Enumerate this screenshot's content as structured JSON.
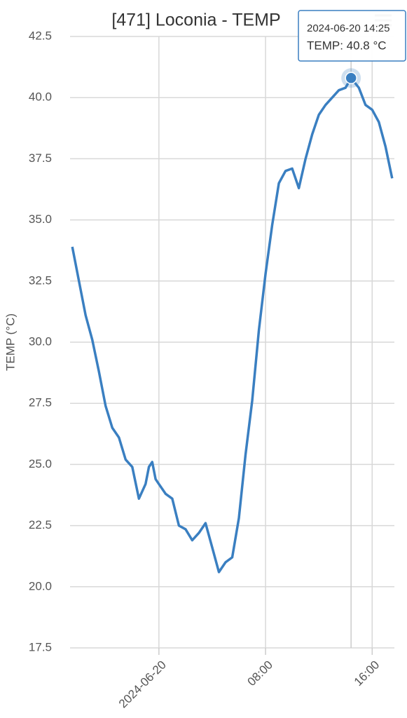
{
  "chart_data": {
    "type": "line",
    "title": "[471] Loconia - TEMP",
    "y_label": "TEMP (°C)",
    "x": [
      "2024-06-19 17:30",
      "2024-06-19 18:00",
      "2024-06-19 18:30",
      "2024-06-19 19:00",
      "2024-06-19 19:30",
      "2024-06-19 20:00",
      "2024-06-19 20:30",
      "2024-06-19 21:00",
      "2024-06-19 21:30",
      "2024-06-19 22:00",
      "2024-06-19 22:30",
      "2024-06-19 23:00",
      "2024-06-19 23:15",
      "2024-06-19 23:30",
      "2024-06-19 23:45",
      "2024-06-20 00:00",
      "2024-06-20 00:30",
      "2024-06-20 01:00",
      "2024-06-20 01:30",
      "2024-06-20 02:00",
      "2024-06-20 02:30",
      "2024-06-20 03:00",
      "2024-06-20 03:30",
      "2024-06-20 04:00",
      "2024-06-20 04:30",
      "2024-06-20 05:00",
      "2024-06-20 05:30",
      "2024-06-20 06:00",
      "2024-06-20 06:30",
      "2024-06-20 07:00",
      "2024-06-20 07:30",
      "2024-06-20 08:00",
      "2024-06-20 08:30",
      "2024-06-20 09:00",
      "2024-06-20 09:30",
      "2024-06-20 10:00",
      "2024-06-20 10:30",
      "2024-06-20 11:00",
      "2024-06-20 11:30",
      "2024-06-20 12:00",
      "2024-06-20 12:30",
      "2024-06-20 13:00",
      "2024-06-20 13:30",
      "2024-06-20 14:00",
      "2024-06-20 14:25",
      "2024-06-20 15:00",
      "2024-06-20 15:30",
      "2024-06-20 16:00",
      "2024-06-20 16:30",
      "2024-06-20 17:00",
      "2024-06-20 17:30"
    ],
    "series": [
      {
        "name": "TEMP",
        "color": "#3a7fc1",
        "values": [
          33.9,
          32.5,
          31.1,
          30.1,
          28.8,
          27.4,
          26.5,
          26.1,
          25.2,
          24.9,
          23.6,
          24.2,
          24.9,
          25.1,
          24.4,
          24.2,
          23.8,
          23.6,
          22.5,
          22.35,
          21.9,
          22.2,
          22.6,
          21.6,
          20.6,
          21.0,
          21.2,
          22.8,
          25.4,
          27.6,
          30.5,
          32.8,
          34.8,
          36.5,
          37.0,
          37.1,
          36.3,
          37.5,
          38.5,
          39.3,
          39.7,
          40.0,
          40.3,
          40.4,
          40.8,
          40.4,
          39.7,
          39.5,
          39.0,
          38.0,
          36.7
        ]
      }
    ],
    "xlim": [
      "2024-06-19 17:20",
      "2024-06-20 17:40"
    ],
    "xticks": [
      {
        "value": "2024-06-20 00:00",
        "label": "2024-06-20"
      },
      {
        "value": "2024-06-20 08:00",
        "label": "08:00"
      },
      {
        "value": "2024-06-20 16:00",
        "label": "16:00"
      }
    ],
    "ylim": [
      17.5,
      42.5
    ],
    "yticks": [
      17.5,
      {
        "value": 20,
        "label": "20.0"
      },
      22.5,
      {
        "value": 25,
        "label": "25.0"
      },
      27.5,
      {
        "value": 30,
        "label": "30.0"
      },
      32.5,
      {
        "value": 35,
        "label": "35.0"
      },
      37.5,
      {
        "value": 40,
        "label": "40.0"
      },
      42.5
    ],
    "grid": true,
    "tooltip": {
      "x": "2024-06-20 14:25",
      "text": "TEMP: 40.8 °C"
    }
  }
}
